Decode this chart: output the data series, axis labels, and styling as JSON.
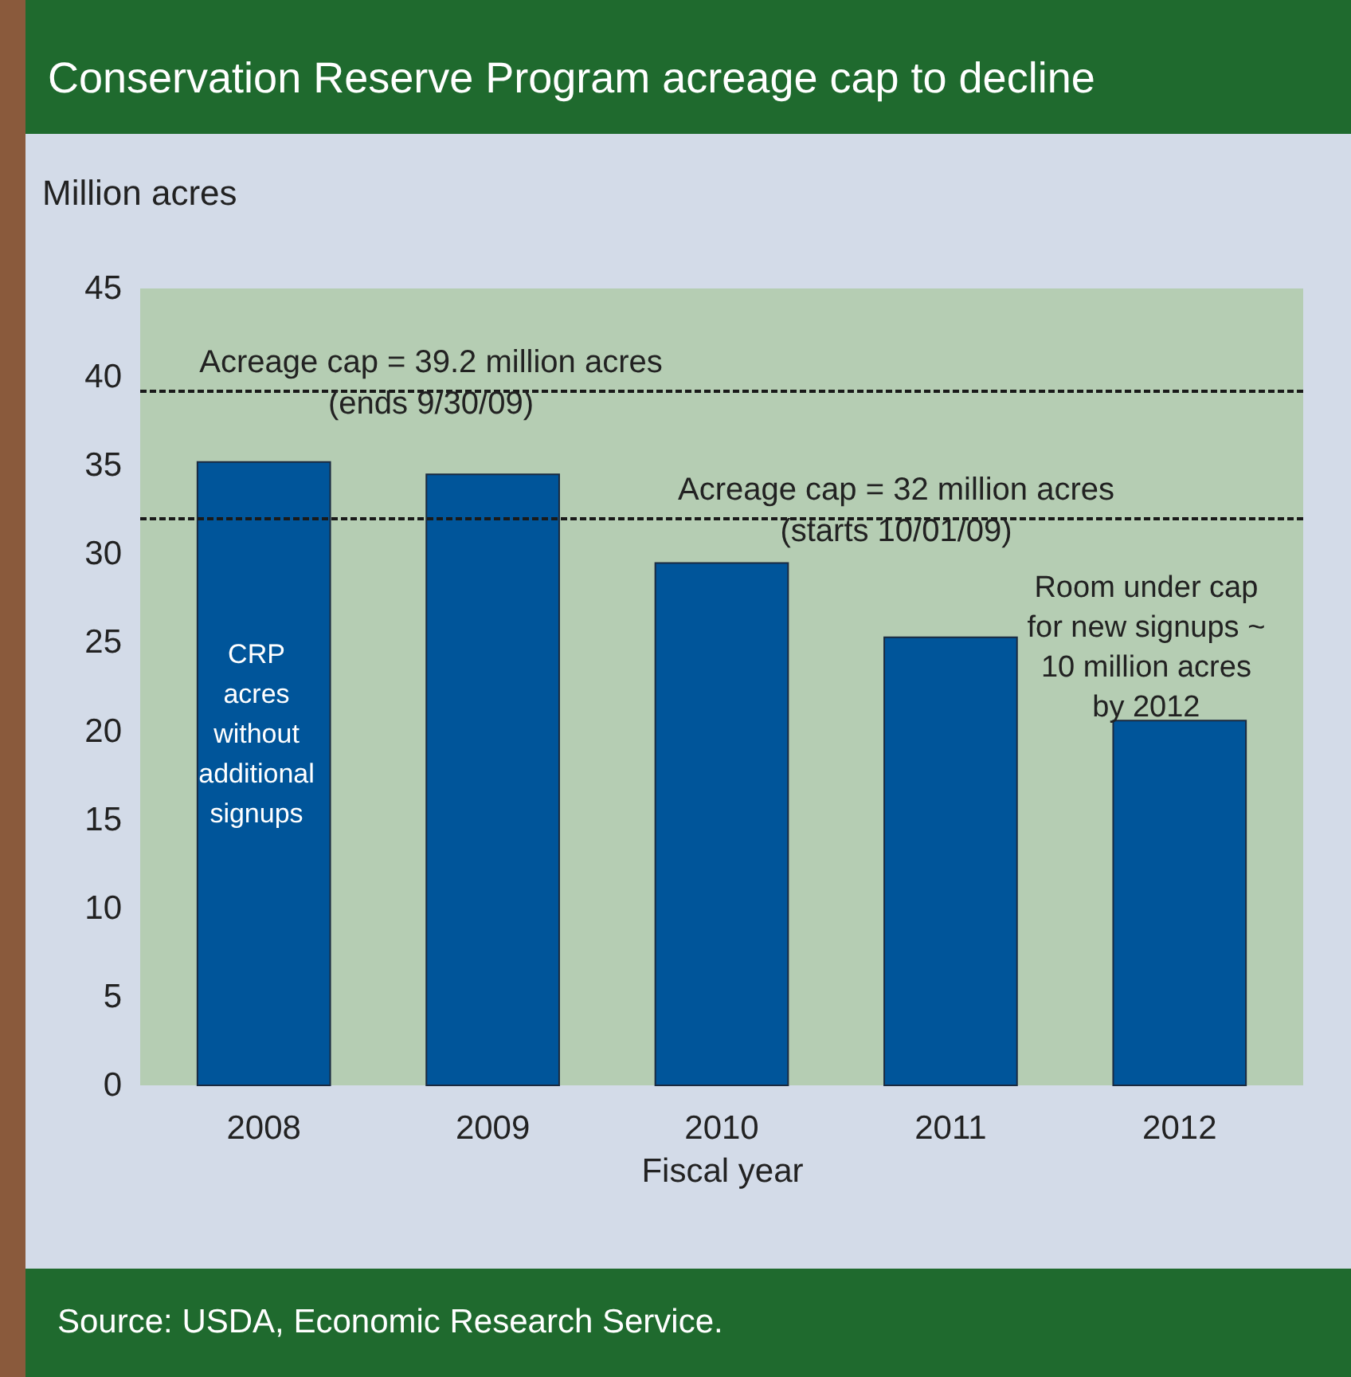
{
  "chart_data": {
    "type": "bar",
    "title": "Conservation Reserve Program acreage cap to decline",
    "ylabel": "Million acres",
    "xlabel": "Fiscal year",
    "categories": [
      "2008",
      "2009",
      "2010",
      "2011",
      "2012"
    ],
    "values": [
      35.2,
      34.5,
      29.5,
      25.3,
      20.6
    ],
    "color": "#00559a",
    "ylim": [
      0,
      45
    ],
    "yticks": [
      0,
      5,
      10,
      15,
      20,
      25,
      30,
      35,
      40,
      45
    ],
    "grid": false,
    "ref_lines": [
      {
        "axis": "y",
        "value": 39.2,
        "label": "Acreage cap = 39.2 million acres\n(ends 9/30/09)",
        "line_style": "dashed",
        "color": "#1a1a1a"
      },
      {
        "axis": "y",
        "value": 32,
        "label": "Acreage cap = 32 million acres\n(starts 10/01/09)",
        "line_style": "dashed",
        "color": "#1a1a1a"
      }
    ],
    "annotations": [
      "CRP\nacres\nwithout\nadditional\nsignups",
      "Room under cap\nfor new signups ~\n10 million acres\nby 2012",
      "Source:  USDA, Economic Research Service."
    ]
  }
}
